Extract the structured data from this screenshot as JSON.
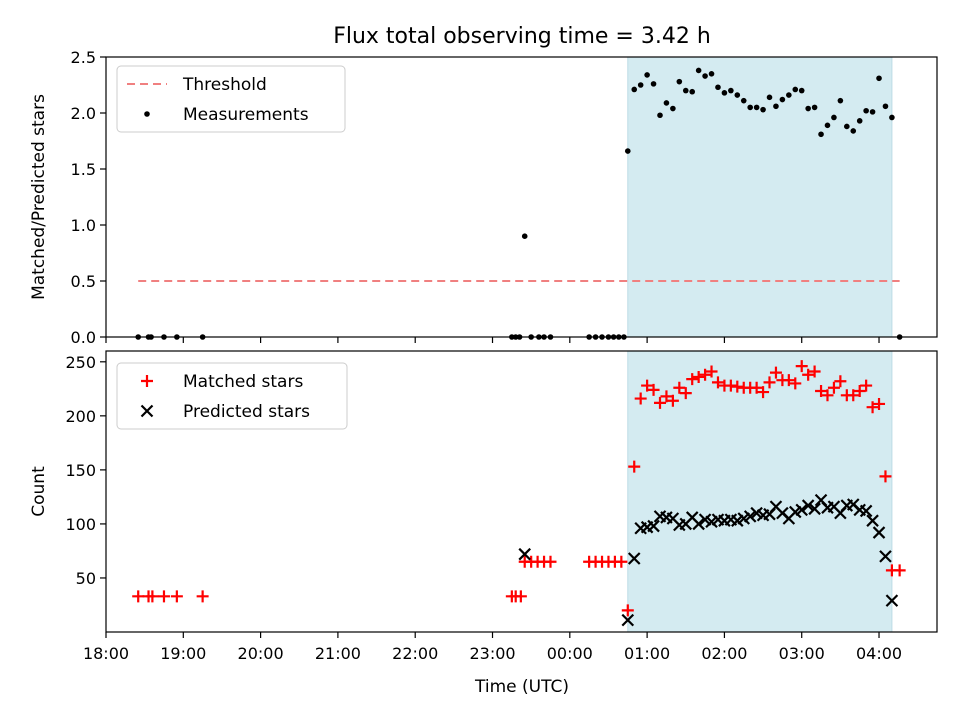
{
  "chart_data": [
    {
      "type": "scatter",
      "title": "Flux total observing time = 3.42 h",
      "xlabel": "",
      "ylabel": "Matched/Predicted stars",
      "xlim": [
        "18:00",
        "04:45"
      ],
      "ylim": [
        0,
        2.5
      ],
      "yticks": [
        "0.0",
        "0.5",
        "1.0",
        "1.5",
        "2.0",
        "2.5"
      ],
      "grid": false,
      "legend_position": "top-left",
      "shaded_span": {
        "x_start": "00:45",
        "x_end": "04:10",
        "color": "#d4ebf1"
      },
      "series": [
        {
          "name": "Threshold",
          "style": "dashed-line",
          "color": "#f08080",
          "points": [
            [
              "18:25",
              0.5
            ],
            [
              "04:16",
              0.5
            ]
          ]
        },
        {
          "name": "Measurements",
          "style": "dot",
          "color": "#000000",
          "points": [
            [
              "18:25",
              0.0
            ],
            [
              "18:33",
              0.0
            ],
            [
              "18:35",
              0.0
            ],
            [
              "18:45",
              0.0
            ],
            [
              "18:55",
              0.0
            ],
            [
              "19:15",
              0.0
            ],
            [
              "23:15",
              0.0
            ],
            [
              "23:18",
              0.0
            ],
            [
              "23:21",
              0.0
            ],
            [
              "23:25",
              0.9
            ],
            [
              "23:30",
              0.0
            ],
            [
              "23:36",
              0.0
            ],
            [
              "23:40",
              0.0
            ],
            [
              "23:45",
              0.0
            ],
            [
              "00:15",
              0.0
            ],
            [
              "00:20",
              0.0
            ],
            [
              "00:25",
              0.0
            ],
            [
              "00:30",
              0.0
            ],
            [
              "00:34",
              0.0
            ],
            [
              "00:38",
              0.0
            ],
            [
              "00:42",
              0.0
            ],
            [
              "00:45",
              1.66
            ],
            [
              "00:50",
              2.21
            ],
            [
              "00:55",
              2.25
            ],
            [
              "01:00",
              2.34
            ],
            [
              "01:05",
              2.26
            ],
            [
              "01:10",
              1.98
            ],
            [
              "01:15",
              2.09
            ],
            [
              "01:20",
              2.04
            ],
            [
              "01:25",
              2.28
            ],
            [
              "01:30",
              2.2
            ],
            [
              "01:35",
              2.19
            ],
            [
              "01:40",
              2.38
            ],
            [
              "01:45",
              2.33
            ],
            [
              "01:50",
              2.35
            ],
            [
              "01:55",
              2.23
            ],
            [
              "02:00",
              2.18
            ],
            [
              "02:05",
              2.2
            ],
            [
              "02:10",
              2.16
            ],
            [
              "02:15",
              2.11
            ],
            [
              "02:20",
              2.05
            ],
            [
              "02:25",
              2.05
            ],
            [
              "02:30",
              2.03
            ],
            [
              "02:35",
              2.14
            ],
            [
              "02:40",
              2.06
            ],
            [
              "02:45",
              2.12
            ],
            [
              "02:50",
              2.16
            ],
            [
              "02:55",
              2.21
            ],
            [
              "03:00",
              2.2
            ],
            [
              "03:05",
              2.04
            ],
            [
              "03:10",
              2.05
            ],
            [
              "03:15",
              1.81
            ],
            [
              "03:20",
              1.89
            ],
            [
              "03:25",
              1.96
            ],
            [
              "03:30",
              2.11
            ],
            [
              "03:35",
              1.88
            ],
            [
              "03:40",
              1.84
            ],
            [
              "03:45",
              1.93
            ],
            [
              "03:50",
              2.02
            ],
            [
              "03:55",
              2.01
            ],
            [
              "04:00",
              2.31
            ],
            [
              "04:05",
              2.06
            ],
            [
              "04:10",
              1.96
            ],
            [
              "04:16",
              0.0
            ]
          ]
        }
      ]
    },
    {
      "type": "scatter",
      "title": "",
      "xlabel": "Time (UTC)",
      "ylabel": "Count",
      "xlim": [
        "18:00",
        "04:45"
      ],
      "ylim": [
        0,
        260
      ],
      "xticks": [
        "18:00",
        "19:00",
        "20:00",
        "21:00",
        "22:00",
        "23:00",
        "00:00",
        "01:00",
        "02:00",
        "03:00",
        "04:00"
      ],
      "yticks": [
        "50",
        "100",
        "150",
        "200",
        "250"
      ],
      "grid": false,
      "legend_position": "top-left",
      "shaded_span": {
        "x_start": "00:45",
        "x_end": "04:10",
        "color": "#d4ebf1"
      },
      "series": [
        {
          "name": "Matched stars",
          "marker": "plus",
          "color": "#ff0000",
          "points": [
            [
              "18:25",
              33
            ],
            [
              "18:33",
              33
            ],
            [
              "18:36",
              33
            ],
            [
              "18:45",
              33
            ],
            [
              "18:55",
              33
            ],
            [
              "19:15",
              33
            ],
            [
              "23:15",
              33
            ],
            [
              "23:18",
              33
            ],
            [
              "23:22",
              33
            ],
            [
              "23:25",
              65
            ],
            [
              "23:30",
              65
            ],
            [
              "23:35",
              65
            ],
            [
              "23:40",
              65
            ],
            [
              "23:45",
              65
            ],
            [
              "00:15",
              65
            ],
            [
              "00:20",
              65
            ],
            [
              "00:25",
              65
            ],
            [
              "00:30",
              65
            ],
            [
              "00:35",
              65
            ],
            [
              "00:40",
              65
            ],
            [
              "00:45",
              20
            ],
            [
              "00:50",
              153
            ],
            [
              "00:55",
              216
            ],
            [
              "01:00",
              228
            ],
            [
              "01:05",
              224
            ],
            [
              "01:10",
              212
            ],
            [
              "01:15",
              218
            ],
            [
              "01:20",
              214
            ],
            [
              "01:25",
              226
            ],
            [
              "01:30",
              221
            ],
            [
              "01:35",
              234
            ],
            [
              "01:40",
              236
            ],
            [
              "01:45",
              238
            ],
            [
              "01:50",
              241
            ],
            [
              "01:55",
              231
            ],
            [
              "02:00",
              228
            ],
            [
              "02:05",
              228
            ],
            [
              "02:10",
              227
            ],
            [
              "02:15",
              226
            ],
            [
              "02:20",
              226
            ],
            [
              "02:25",
              226
            ],
            [
              "02:30",
              222
            ],
            [
              "02:35",
              231
            ],
            [
              "02:40",
              240
            ],
            [
              "02:45",
              233
            ],
            [
              "02:50",
              233
            ],
            [
              "02:55",
              230
            ],
            [
              "03:00",
              246
            ],
            [
              "03:05",
              238
            ],
            [
              "03:10",
              241
            ],
            [
              "03:15",
              223
            ],
            [
              "03:20",
              219
            ],
            [
              "03:25",
              226
            ],
            [
              "03:30",
              232
            ],
            [
              "03:35",
              219
            ],
            [
              "03:40",
              219
            ],
            [
              "03:45",
              223
            ],
            [
              "03:50",
              228
            ],
            [
              "03:55",
              208
            ],
            [
              "04:00",
              211
            ],
            [
              "04:05",
              144
            ],
            [
              "04:10",
              57
            ],
            [
              "04:16",
              57
            ]
          ]
        },
        {
          "name": "Predicted stars",
          "marker": "x",
          "color": "#000000",
          "points": [
            [
              "23:25",
              72
            ],
            [
              "00:45",
              11
            ],
            [
              "00:50",
              68
            ],
            [
              "00:55",
              96
            ],
            [
              "01:00",
              97
            ],
            [
              "01:05",
              98
            ],
            [
              "01:10",
              107
            ],
            [
              "01:15",
              106
            ],
            [
              "01:20",
              105
            ],
            [
              "01:25",
              99
            ],
            [
              "01:30",
              100
            ],
            [
              "01:35",
              106
            ],
            [
              "01:40",
              100
            ],
            [
              "01:45",
              104
            ],
            [
              "01:50",
              102
            ],
            [
              "01:55",
              104
            ],
            [
              "02:00",
              103
            ],
            [
              "02:05",
              104
            ],
            [
              "02:10",
              103
            ],
            [
              "02:15",
              105
            ],
            [
              "02:20",
              107
            ],
            [
              "02:25",
              110
            ],
            [
              "02:30",
              108
            ],
            [
              "02:35",
              109
            ],
            [
              "02:40",
              116
            ],
            [
              "02:45",
              110
            ],
            [
              "02:50",
              105
            ],
            [
              "02:55",
              111
            ],
            [
              "03:00",
              113
            ],
            [
              "03:05",
              117
            ],
            [
              "03:10",
              114
            ],
            [
              "03:15",
              122
            ],
            [
              "03:20",
              115
            ],
            [
              "03:25",
              116
            ],
            [
              "03:30",
              110
            ],
            [
              "03:35",
              117
            ],
            [
              "03:40",
              118
            ],
            [
              "03:45",
              113
            ],
            [
              "03:50",
              112
            ],
            [
              "03:55",
              103
            ],
            [
              "04:00",
              92
            ],
            [
              "04:05",
              70
            ],
            [
              "04:10",
              29
            ]
          ]
        }
      ]
    }
  ]
}
